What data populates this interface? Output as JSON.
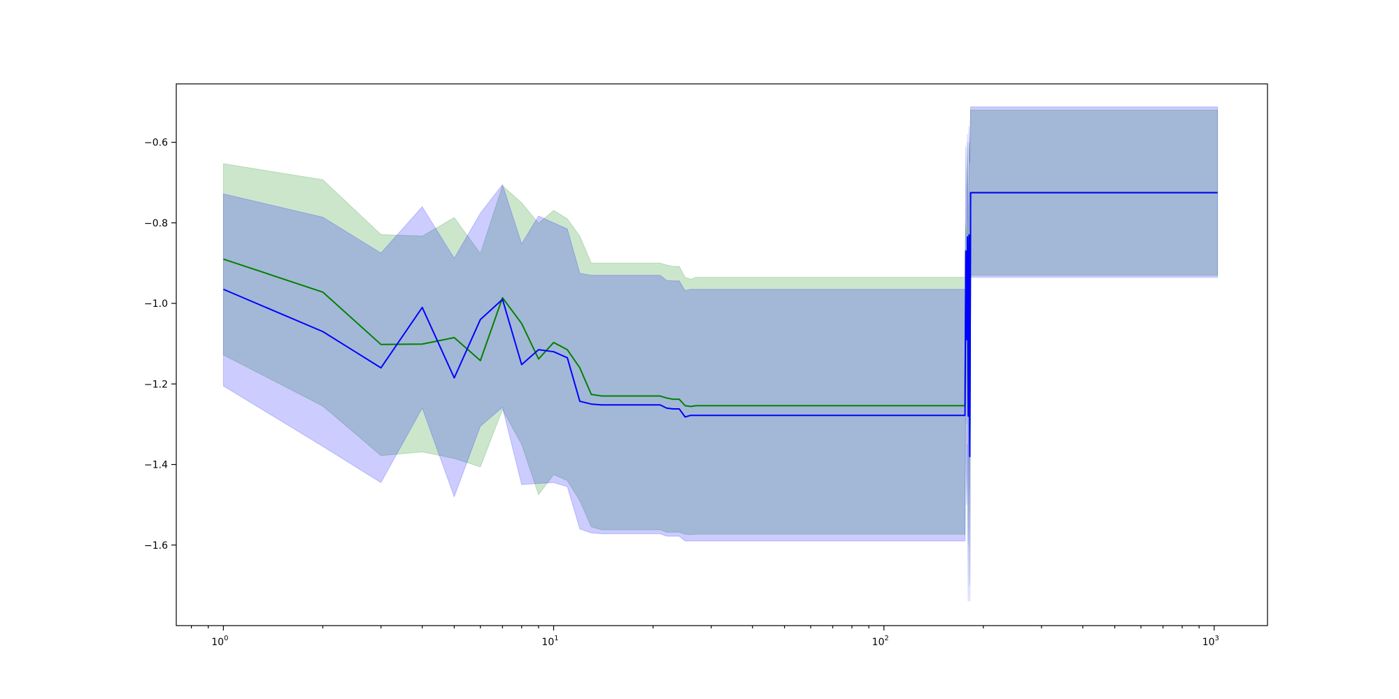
{
  "chart_data": {
    "type": "line",
    "x_scale": "log",
    "xlim": [
      0.72,
      1450
    ],
    "ylim": [
      -1.8,
      -0.455
    ],
    "grid": false,
    "x_ticks": [
      {
        "value": 1,
        "base": "10",
        "exp": "0"
      },
      {
        "value": 10,
        "base": "10",
        "exp": "1"
      },
      {
        "value": 100,
        "base": "10",
        "exp": "2"
      },
      {
        "value": 1000,
        "base": "10",
        "exp": "3"
      }
    ],
    "y_ticks": [
      {
        "value": -1.6,
        "label": "−1.6"
      },
      {
        "value": -1.4,
        "label": "−1.4"
      },
      {
        "value": -1.2,
        "label": "−1.2"
      },
      {
        "value": -1.0,
        "label": "−1.0"
      },
      {
        "value": -0.8,
        "label": "−0.8"
      },
      {
        "value": -0.6,
        "label": "−0.6"
      }
    ],
    "series": [
      {
        "color": "#008000",
        "band_color": "#008000",
        "band_opacity": 0.2,
        "x": [
          1,
          2,
          3,
          4,
          5,
          6,
          7,
          8,
          9,
          10,
          11,
          12,
          13,
          14,
          21,
          22,
          23,
          24,
          25,
          26,
          27,
          176,
          177,
          178,
          179,
          180,
          181,
          182,
          183,
          184,
          185,
          186,
          1024
        ],
        "y": [
          -0.89,
          -0.972,
          -1.102,
          -1.101,
          -1.085,
          -1.142,
          -0.986,
          -1.05,
          -1.138,
          -1.097,
          -1.115,
          -1.16,
          -1.226,
          -1.23,
          -1.23,
          -1.235,
          -1.238,
          -1.238,
          -1.254,
          -1.256,
          -1.254,
          -1.254,
          -0.87,
          -1.09,
          -0.835,
          -1.28,
          -0.83,
          -1.38,
          -0.725,
          -0.725,
          -0.725,
          -0.725,
          -0.725
        ],
        "upper": [
          -0.653,
          -0.693,
          -0.829,
          -0.833,
          -0.787,
          -0.876,
          -0.708,
          -0.75,
          -0.801,
          -0.769,
          -0.79,
          -0.833,
          -0.9,
          -0.9,
          -0.9,
          -0.905,
          -0.908,
          -0.908,
          -0.935,
          -0.94,
          -0.935,
          -0.935,
          -0.8,
          -0.85,
          -0.6,
          -0.9,
          -0.6,
          -0.65,
          -0.52,
          -0.52,
          -0.52,
          -0.52,
          -0.52
        ],
        "lower": [
          -1.128,
          -1.255,
          -1.378,
          -1.369,
          -1.385,
          -1.406,
          -1.264,
          -1.35,
          -1.475,
          -1.425,
          -1.44,
          -1.49,
          -1.555,
          -1.562,
          -1.562,
          -1.568,
          -1.568,
          -1.568,
          -1.573,
          -1.574,
          -1.573,
          -1.573,
          -0.95,
          -1.3,
          -1.05,
          -1.6,
          -1.05,
          -1.7,
          -0.93,
          -0.93,
          -0.93,
          -0.93,
          -0.93
        ]
      },
      {
        "color": "#0000ff",
        "band_color": "#0000ff",
        "band_opacity": 0.2,
        "x": [
          1,
          2,
          3,
          4,
          5,
          6,
          7,
          8,
          9,
          10,
          11,
          12,
          13,
          14,
          21,
          22,
          23,
          24,
          25,
          26,
          27,
          176,
          177,
          178,
          179,
          180,
          181,
          182,
          183,
          184,
          185,
          186,
          1024
        ],
        "y": [
          -0.965,
          -1.07,
          -1.16,
          -1.01,
          -1.185,
          -1.04,
          -0.99,
          -1.152,
          -1.115,
          -1.12,
          -1.135,
          -1.243,
          -1.25,
          -1.252,
          -1.252,
          -1.26,
          -1.262,
          -1.262,
          -1.282,
          -1.278,
          -1.278,
          -1.278,
          -0.87,
          -1.09,
          -0.835,
          -1.28,
          -0.83,
          -1.38,
          -0.725,
          -0.725,
          -0.725,
          -0.725,
          -0.725
        ],
        "upper": [
          -0.728,
          -0.786,
          -0.875,
          -0.76,
          -0.888,
          -0.776,
          -0.705,
          -0.852,
          -0.783,
          -0.8,
          -0.815,
          -0.925,
          -0.93,
          -0.93,
          -0.93,
          -0.943,
          -0.944,
          -0.944,
          -0.968,
          -0.965,
          -0.965,
          -0.965,
          -0.61,
          -0.8,
          -0.58,
          -0.91,
          -0.56,
          -0.65,
          -0.512,
          -0.512,
          -0.512,
          -0.512,
          -0.512
        ],
        "lower": [
          -1.205,
          -1.355,
          -1.445,
          -1.26,
          -1.48,
          -1.305,
          -1.258,
          -1.45,
          -1.447,
          -1.445,
          -1.455,
          -1.56,
          -1.57,
          -1.572,
          -1.572,
          -1.578,
          -1.578,
          -1.578,
          -1.59,
          -1.59,
          -1.59,
          -1.59,
          -1.28,
          -1.5,
          -1.35,
          -1.74,
          -1.2,
          -1.74,
          -0.935,
          -0.935,
          -0.935,
          -0.935,
          -0.935
        ]
      }
    ]
  }
}
